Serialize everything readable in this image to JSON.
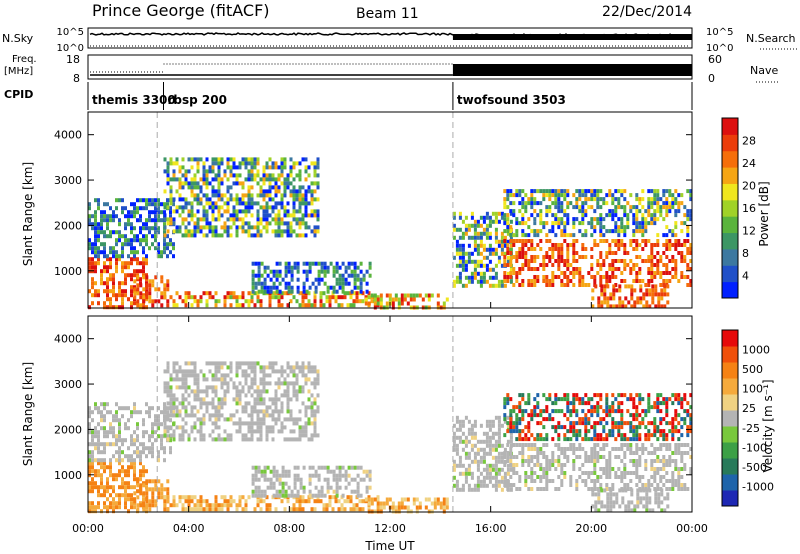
{
  "header": {
    "station": "Prince George (fitACF)",
    "beam": "Beam 11",
    "date": "22/Dec/2014"
  },
  "noise_panel": {
    "left_label": "N.Sky",
    "left_ticks": [
      "10^5",
      "10^0"
    ],
    "right_label": "N.Search",
    "right_ticks": [
      "10^5",
      "10^0"
    ]
  },
  "freq_panel": {
    "left_label_1": "Freq.",
    "left_label_2": "[MHz]",
    "left_ticks": [
      "18",
      "8"
    ],
    "right_label": "Nave",
    "right_ticks": [
      "60",
      "0"
    ]
  },
  "cpid_panel": {
    "label": "CPID",
    "segments": [
      {
        "name": "themis 3300",
        "start_hour": 0
      },
      {
        "name": "rbsp 200",
        "start_hour": 3
      },
      {
        "name": "twofsound 3503",
        "start_hour": 14.5
      }
    ]
  },
  "chart_data": [
    {
      "type": "heatmap",
      "name": "power",
      "ylabel": "Slant Range [km]",
      "yticks": [
        "1000",
        "2000",
        "3000",
        "4000"
      ],
      "ylim": [
        180,
        4500
      ],
      "xlim_hours": [
        0,
        24
      ],
      "colorbar_label": "Power [dB]",
      "colorbar_ticks": [
        "4",
        "8",
        "12",
        "16",
        "20",
        "24",
        "28"
      ],
      "colors": [
        "#0020ff",
        "#2050c8",
        "#3c78a0",
        "#3c9664",
        "#5ab43c",
        "#a0d228",
        "#f0e61e",
        "#f5a514",
        "#f56e0a",
        "#eb3c0a",
        "#dc0f0f"
      ],
      "dashed_lines_hours": [
        2.75,
        14.5
      ]
    },
    {
      "type": "heatmap",
      "name": "velocity",
      "ylabel": "Slant Range [km]",
      "yticks": [
        "1000",
        "2000",
        "3000",
        "4000"
      ],
      "ylim": [
        180,
        4500
      ],
      "xlim_hours": [
        0,
        24
      ],
      "xlabel": "Time UT",
      "xticks": [
        "00:00",
        "04:00",
        "08:00",
        "12:00",
        "16:00",
        "20:00",
        "00:00"
      ],
      "colorbar_label": "Velocity [m s⁻¹]",
      "colorbar_ticks": [
        "1000",
        "500",
        "100",
        "25",
        "-25",
        "-100",
        "-500",
        "-1000"
      ],
      "colors": [
        "#1e28b4",
        "#1e64aa",
        "#287a5a",
        "#3ca046",
        "#78c83c",
        "#b4b4b4",
        "#f0d282",
        "#f5aa3c",
        "#f58214",
        "#f0500a",
        "#e60a0a"
      ],
      "dashed_lines_hours": [
        2.75,
        14.5
      ]
    }
  ]
}
